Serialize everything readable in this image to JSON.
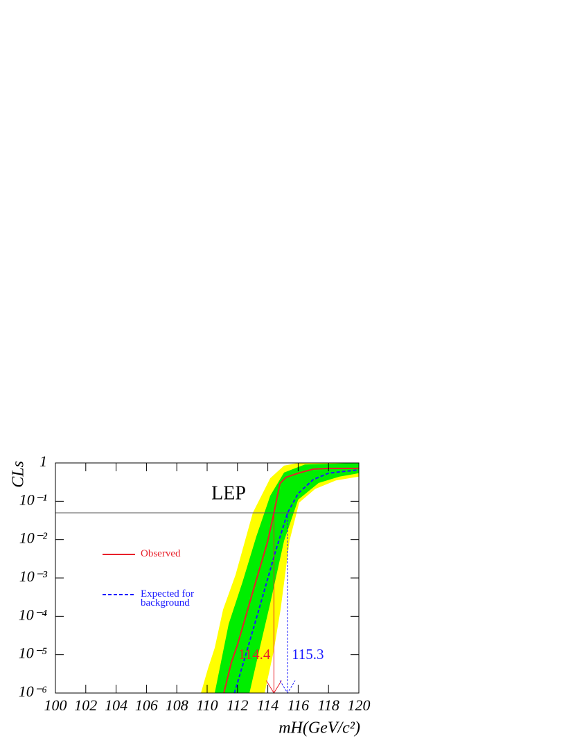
{
  "chart_data": {
    "type": "line",
    "annotation": "LEP",
    "x_label": "mH(GeV/c²)",
    "y_label": "CLs",
    "xlim": [
      100,
      120
    ],
    "ylim": [
      1e-06,
      1
    ],
    "log_y": true,
    "xticks": [
      100,
      102,
      104,
      106,
      108,
      110,
      112,
      114,
      116,
      118,
      120
    ],
    "yticks": [
      {
        "value": 1,
        "label": "1"
      },
      {
        "value": 0.1,
        "label": "10⁻¹"
      },
      {
        "value": 0.01,
        "label": "10⁻²"
      },
      {
        "value": 0.001,
        "label": "10⁻³"
      },
      {
        "value": 0.0001,
        "label": "10⁻⁴"
      },
      {
        "value": 1e-05,
        "label": "10⁻⁵"
      },
      {
        "value": 1e-06,
        "label": "10⁻⁶"
      }
    ],
    "reference_line": 0.05,
    "legend": "left",
    "bands": [
      {
        "color": "#ffff00",
        "upper": {
          "x": [
            109.59,
            110.05,
            110.5,
            111.05,
            111.87,
            113.01,
            114.16,
            115.07,
            116,
            120
          ],
          "values": [
            1e-06,
            4.3e-06,
            1.5e-05,
            0.00015,
            0.0012,
            0.05,
            0.4,
            0.85,
            1,
            1
          ]
        },
        "lower": {
          "x": [
            113.79,
            114.38,
            114.84,
            115.43,
            116.07,
            117.12,
            118.49,
            120
          ],
          "values": [
            1e-06,
            1.2e-05,
            0.00015,
            0.0093,
            0.093,
            0.21,
            0.35,
            0.44
          ]
        }
      },
      {
        "color": "#00ee00",
        "upper": {
          "x": [
            110.5,
            111.42,
            112.33,
            113.24,
            114.16,
            115.07,
            116.44,
            120
          ],
          "values": [
            1e-06,
            6.3e-05,
            0.00078,
            0.012,
            0.14,
            0.56,
            0.91,
            1
          ]
        },
        "lower": {
          "x": [
            112.79,
            113.47,
            114.16,
            115.07,
            116,
            117.35,
            118.72,
            120
          ],
          "values": [
            1e-06,
            1.5e-05,
            0.00022,
            0.0093,
            0.11,
            0.3,
            0.44,
            0.54
          ]
        }
      }
    ],
    "series": [
      {
        "name": "Observed",
        "color": "#e8202a",
        "dash": false,
        "x": [
          111.1,
          111.6,
          112,
          113,
          114,
          114.4,
          114.8,
          115.2,
          116,
          117,
          118,
          120
        ],
        "values": [
          1e-06,
          6.3e-06,
          1.8e-05,
          0.00042,
          0.0093,
          0.05,
          0.29,
          0.42,
          0.54,
          0.69,
          0.72,
          0.72
        ]
      },
      {
        "name": "Expected for background",
        "color": "#1a1aff",
        "dash": true,
        "x": [
          111.8,
          112.5,
          113.5,
          114.5,
          115.3,
          116,
          117,
          118,
          119,
          120
        ],
        "values": [
          1e-06,
          8.7e-06,
          0.0002,
          0.0049,
          0.05,
          0.16,
          0.37,
          0.54,
          0.6,
          0.66
        ]
      }
    ],
    "limits": [
      {
        "value": 114.4,
        "color": "#e8202a"
      },
      {
        "value": 115.3,
        "color": "#1a1aff"
      }
    ]
  }
}
